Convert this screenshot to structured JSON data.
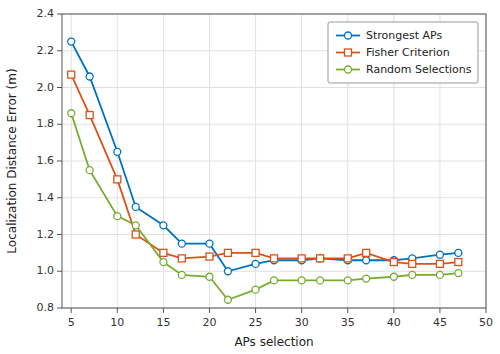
{
  "chart_data": {
    "type": "line",
    "x_label": "APs selection",
    "y_label": "Localization Distance Error (m)",
    "x": [
      5,
      7,
      10,
      12,
      15,
      17,
      20,
      22,
      25,
      27,
      30,
      32,
      35,
      37,
      40,
      42,
      45,
      47
    ],
    "series": [
      {
        "name": "Strongest APs",
        "color": "#0072BD",
        "marker": "circle",
        "line_style": "solid",
        "values": [
          2.25,
          2.06,
          1.65,
          1.35,
          1.25,
          1.15,
          1.15,
          1.0,
          1.04,
          1.06,
          1.06,
          1.07,
          1.06,
          1.06,
          1.06,
          1.07,
          1.09,
          1.1
        ]
      },
      {
        "name": "Fisher Criterion",
        "color": "#D95319",
        "marker": "square",
        "line_style": "solid",
        "values": [
          2.07,
          1.85,
          1.5,
          1.2,
          1.1,
          1.07,
          1.08,
          1.1,
          1.1,
          1.07,
          1.07,
          1.07,
          1.07,
          1.1,
          1.05,
          1.04,
          1.04,
          1.05
        ]
      },
      {
        "name": "Random Selections",
        "color": "#77AC30",
        "marker": "circle",
        "line_style": "solid",
        "values": [
          1.86,
          1.55,
          1.3,
          1.25,
          1.05,
          0.98,
          0.97,
          0.845,
          0.9,
          0.95,
          0.95,
          0.95,
          0.95,
          0.96,
          0.97,
          0.98,
          0.98,
          0.99
        ]
      }
    ],
    "xlim": [
      4,
      50
    ],
    "xticks": [
      5,
      10,
      15,
      20,
      25,
      30,
      35,
      40,
      45,
      50
    ],
    "ylim": [
      0.8,
      2.4
    ],
    "yticks": [
      0.8,
      {
        "value": 1.0,
        "label": "1.0"
      },
      1.2,
      1.4,
      1.6,
      1.8,
      {
        "value": 2.0,
        "label": "2.0"
      },
      2.2,
      2.4
    ],
    "grid": true,
    "legend": "upper right"
  }
}
